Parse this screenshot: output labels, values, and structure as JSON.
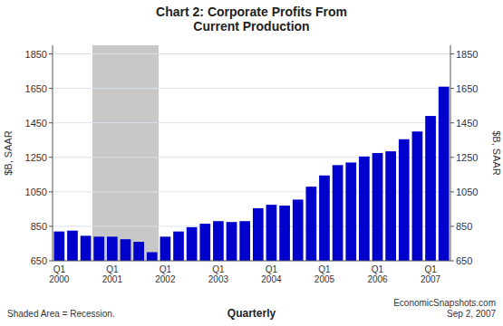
{
  "chart_data": {
    "type": "bar",
    "title": "Chart 2: Corporate Profits From\nCurrent Production",
    "xlabel": "Quarterly",
    "ylabel": "$B, SAAR",
    "y2label": "$B, SAAR",
    "annotations": [
      "Shaded Area = Recession.",
      "EconomicSnapshots.com\nSep 2, 2007"
    ],
    "categories": [
      "Q1\n2000",
      null,
      null,
      null,
      "Q1\n2001",
      null,
      null,
      null,
      "Q1\n2002",
      null,
      null,
      null,
      "Q1\n2003",
      null,
      null,
      null,
      "Q1\n2004",
      null,
      null,
      null,
      "Q1\n2005",
      null,
      null,
      null,
      "Q1\n2006",
      null,
      null,
      null,
      "Q1\n2007",
      null
    ],
    "values": [
      820,
      825,
      795,
      790,
      790,
      775,
      760,
      700,
      790,
      820,
      845,
      865,
      880,
      875,
      880,
      955,
      975,
      970,
      1005,
      1080,
      1145,
      1205,
      1220,
      1255,
      1275,
      1285,
      1355,
      1400,
      1490,
      1660
    ],
    "recession": [
      false,
      false,
      false,
      true,
      true,
      true,
      true,
      true,
      false,
      false,
      false,
      false,
      false,
      false,
      false,
      false,
      false,
      false,
      false,
      false,
      false,
      false,
      false,
      false,
      false,
      false,
      false,
      false,
      false,
      false
    ],
    "recession_color": "#c8c8c8",
    "color": "#0000cc",
    "ylim": [
      650,
      1900
    ],
    "yticks": [
      650,
      850,
      1050,
      1250,
      1450,
      1650,
      1850
    ],
    "y2lim": [
      650,
      1900
    ],
    "y2ticks": [
      650,
      850,
      1050,
      1250,
      1450,
      1650,
      1850
    ],
    "grid": true
  }
}
